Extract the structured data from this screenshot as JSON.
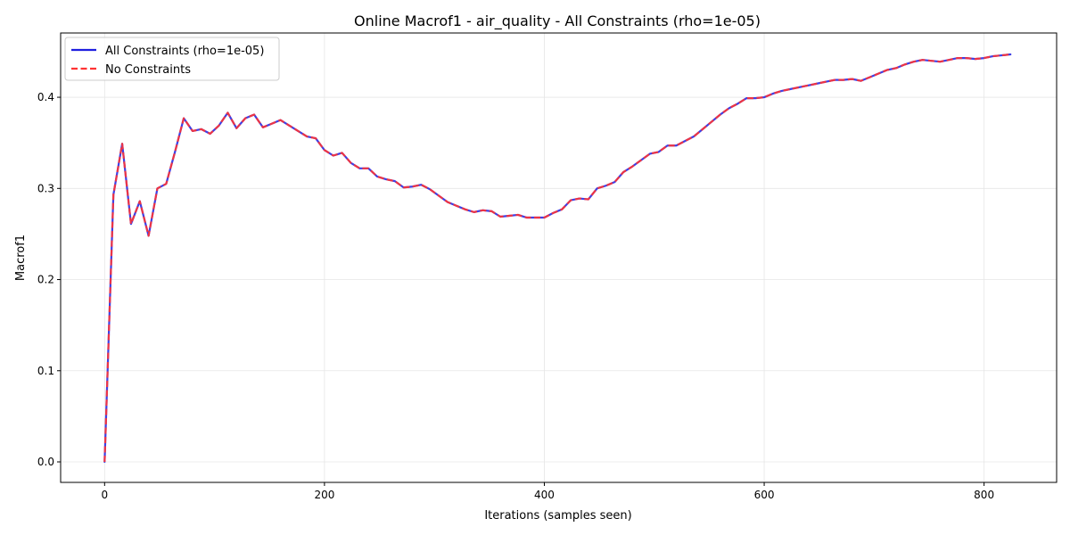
{
  "chart_data": {
    "type": "line",
    "title": "Online Macrof1 - air_quality - All Constraints (rho=1e-05)",
    "xlabel": "Iterations (samples seen)",
    "ylabel": "Macrof1",
    "xlim": [
      -40,
      866
    ],
    "ylim": [
      -0.0225,
      0.4705
    ],
    "xticks": [
      0,
      200,
      400,
      600,
      800
    ],
    "yticks": [
      0.0,
      0.1,
      0.2,
      0.3,
      0.4
    ],
    "xtick_labels": [
      "0",
      "200",
      "400",
      "600",
      "800"
    ],
    "ytick_labels": [
      "0.0",
      "0.1",
      "0.2",
      "0.3",
      "0.4"
    ],
    "grid": true,
    "legend_position": "top-left",
    "x": [
      0,
      8,
      16,
      24,
      32,
      40,
      48,
      56,
      64,
      72,
      80,
      88,
      96,
      104,
      112,
      120,
      128,
      136,
      144,
      152,
      160,
      168,
      176,
      184,
      192,
      200,
      208,
      216,
      224,
      232,
      240,
      248,
      256,
      264,
      272,
      280,
      288,
      296,
      304,
      312,
      320,
      328,
      336,
      344,
      352,
      360,
      368,
      376,
      384,
      392,
      400,
      408,
      416,
      424,
      432,
      440,
      448,
      456,
      464,
      472,
      480,
      488,
      496,
      504,
      512,
      520,
      528,
      536,
      544,
      552,
      560,
      568,
      576,
      584,
      592,
      600,
      608,
      616,
      624,
      632,
      640,
      648,
      656,
      664,
      672,
      680,
      688,
      696,
      704,
      712,
      720,
      728,
      736,
      744,
      752,
      760,
      768,
      776,
      784,
      792,
      800,
      808,
      816,
      824
    ],
    "series": [
      {
        "name": "All Constraints (rho=1e-05)",
        "color": "#1f1fdf",
        "style": "solid",
        "values": [
          0.0,
          0.293,
          0.349,
          0.261,
          0.286,
          0.248,
          0.3,
          0.305,
          0.34,
          0.377,
          0.363,
          0.365,
          0.36,
          0.369,
          0.383,
          0.366,
          0.377,
          0.381,
          0.367,
          0.371,
          0.375,
          0.369,
          0.363,
          0.357,
          0.355,
          0.342,
          0.336,
          0.339,
          0.328,
          0.322,
          0.322,
          0.313,
          0.31,
          0.308,
          0.301,
          0.302,
          0.304,
          0.299,
          0.292,
          0.285,
          0.281,
          0.277,
          0.274,
          0.276,
          0.275,
          0.269,
          0.27,
          0.271,
          0.268,
          0.268,
          0.268,
          0.273,
          0.277,
          0.287,
          0.289,
          0.288,
          0.3,
          0.303,
          0.307,
          0.318,
          0.324,
          0.331,
          0.338,
          0.34,
          0.347,
          0.347,
          0.352,
          0.357,
          0.365,
          0.373,
          0.381,
          0.388,
          0.393,
          0.399,
          0.399,
          0.4,
          0.404,
          0.407,
          0.409,
          0.411,
          0.413,
          0.415,
          0.417,
          0.419,
          0.419,
          0.42,
          0.418,
          0.422,
          0.426,
          0.43,
          0.432,
          0.436,
          0.439,
          0.441,
          0.44,
          0.439,
          0.441,
          0.443,
          0.443,
          0.442,
          0.443,
          0.445,
          0.446,
          0.447
        ]
      },
      {
        "name": "No Constraints",
        "color": "#ff3333",
        "style": "dashed",
        "values": [
          0.0,
          0.293,
          0.349,
          0.261,
          0.286,
          0.248,
          0.3,
          0.305,
          0.34,
          0.377,
          0.363,
          0.365,
          0.36,
          0.369,
          0.383,
          0.366,
          0.377,
          0.381,
          0.367,
          0.371,
          0.375,
          0.369,
          0.363,
          0.357,
          0.355,
          0.342,
          0.336,
          0.339,
          0.328,
          0.322,
          0.322,
          0.313,
          0.31,
          0.308,
          0.301,
          0.302,
          0.304,
          0.299,
          0.292,
          0.285,
          0.281,
          0.277,
          0.274,
          0.276,
          0.275,
          0.269,
          0.27,
          0.271,
          0.268,
          0.268,
          0.268,
          0.273,
          0.277,
          0.287,
          0.289,
          0.288,
          0.3,
          0.303,
          0.307,
          0.318,
          0.324,
          0.331,
          0.338,
          0.34,
          0.347,
          0.347,
          0.352,
          0.357,
          0.365,
          0.373,
          0.381,
          0.388,
          0.393,
          0.399,
          0.399,
          0.4,
          0.404,
          0.407,
          0.409,
          0.411,
          0.413,
          0.415,
          0.417,
          0.419,
          0.419,
          0.42,
          0.418,
          0.422,
          0.426,
          0.43,
          0.432,
          0.436,
          0.439,
          0.441,
          0.44,
          0.439,
          0.441,
          0.443,
          0.443,
          0.442,
          0.443,
          0.445,
          0.446,
          0.447
        ]
      }
    ]
  }
}
